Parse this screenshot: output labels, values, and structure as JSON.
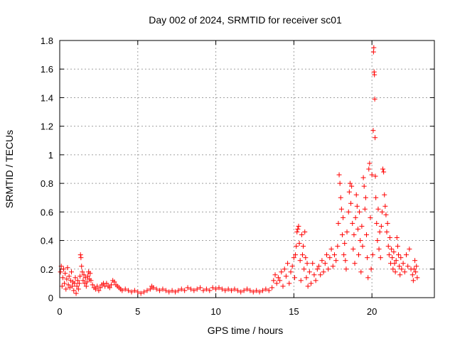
{
  "chart_data": {
    "type": "scatter",
    "title": "Day 002 of 2024, SRMTID for receiver sc01",
    "xlabel": "GPS time / hours",
    "ylabel": "SRMTID / TECUs",
    "xlim": [
      0,
      24
    ],
    "ylim": [
      0,
      1.8
    ],
    "xticks": [
      0,
      5,
      10,
      15,
      20
    ],
    "xtick_labels": [
      "0",
      "5",
      "10",
      "15",
      "20"
    ],
    "yticks": [
      0,
      0.2,
      0.4,
      0.6,
      0.8,
      1,
      1.2,
      1.4,
      1.6,
      1.8
    ],
    "ytick_labels": [
      "0",
      "0.2",
      "0.4",
      "0.6",
      "0.8",
      "1",
      "1.2",
      "1.4",
      "1.6",
      "1.8"
    ],
    "grid": true,
    "marker": "+",
    "color": "#ff0000",
    "series": [
      {
        "name": "SRMTID",
        "points": [
          [
            0.05,
            0.18
          ],
          [
            0.1,
            0.22
          ],
          [
            0.15,
            0.08
          ],
          [
            0.2,
            0.14
          ],
          [
            0.25,
            0.2
          ],
          [
            0.3,
            0.1
          ],
          [
            0.35,
            0.17
          ],
          [
            0.4,
            0.06
          ],
          [
            0.45,
            0.13
          ],
          [
            0.5,
            0.21
          ],
          [
            0.55,
            0.09
          ],
          [
            0.6,
            0.15
          ],
          [
            0.65,
            0.07
          ],
          [
            0.7,
            0.12
          ],
          [
            0.75,
            0.18
          ],
          [
            0.8,
            0.08
          ],
          [
            0.85,
            0.11
          ],
          [
            0.9,
            0.05
          ],
          [
            0.95,
            0.1
          ],
          [
            1.0,
            0.14
          ],
          [
            1.05,
            0.03
          ],
          [
            1.1,
            0.08
          ],
          [
            1.15,
            0.12
          ],
          [
            1.2,
            0.06
          ],
          [
            1.25,
            0.1
          ],
          [
            1.3,
            0.15
          ],
          [
            1.33,
            0.3
          ],
          [
            1.36,
            0.28
          ],
          [
            1.4,
            0.22
          ],
          [
            1.45,
            0.18
          ],
          [
            1.5,
            0.12
          ],
          [
            1.55,
            0.16
          ],
          [
            1.6,
            0.1
          ],
          [
            1.65,
            0.14
          ],
          [
            1.7,
            0.08
          ],
          [
            1.75,
            0.11
          ],
          [
            1.8,
            0.15
          ],
          [
            1.85,
            0.18
          ],
          [
            1.9,
            0.13
          ],
          [
            1.95,
            0.17
          ],
          [
            2.0,
            0.12
          ],
          [
            2.1,
            0.09
          ],
          [
            2.2,
            0.07
          ],
          [
            2.3,
            0.06
          ],
          [
            2.4,
            0.08
          ],
          [
            2.5,
            0.05
          ],
          [
            2.6,
            0.07
          ],
          [
            2.7,
            0.09
          ],
          [
            2.8,
            0.1
          ],
          [
            2.9,
            0.08
          ],
          [
            3.0,
            0.1
          ],
          [
            3.1,
            0.08
          ],
          [
            3.2,
            0.07
          ],
          [
            3.3,
            0.09
          ],
          [
            3.4,
            0.12
          ],
          [
            3.5,
            0.11
          ],
          [
            3.6,
            0.09
          ],
          [
            3.7,
            0.08
          ],
          [
            3.8,
            0.07
          ],
          [
            3.9,
            0.06
          ],
          [
            4.0,
            0.05
          ],
          [
            4.2,
            0.06
          ],
          [
            4.4,
            0.05
          ],
          [
            4.6,
            0.04
          ],
          [
            4.8,
            0.05
          ],
          [
            5.0,
            0.04
          ],
          [
            5.2,
            0.03
          ],
          [
            5.4,
            0.04
          ],
          [
            5.6,
            0.05
          ],
          [
            5.8,
            0.06
          ],
          [
            5.9,
            0.08
          ],
          [
            6.0,
            0.07
          ],
          [
            6.2,
            0.06
          ],
          [
            6.4,
            0.05
          ],
          [
            6.6,
            0.06
          ],
          [
            6.8,
            0.05
          ],
          [
            7.0,
            0.04
          ],
          [
            7.2,
            0.05
          ],
          [
            7.4,
            0.04
          ],
          [
            7.6,
            0.05
          ],
          [
            7.8,
            0.06
          ],
          [
            8.0,
            0.05
          ],
          [
            8.2,
            0.07
          ],
          [
            8.4,
            0.06
          ],
          [
            8.6,
            0.05
          ],
          [
            8.8,
            0.06
          ],
          [
            9.0,
            0.07
          ],
          [
            9.2,
            0.05
          ],
          [
            9.4,
            0.06
          ],
          [
            9.6,
            0.05
          ],
          [
            9.8,
            0.07
          ],
          [
            10.0,
            0.06
          ],
          [
            10.2,
            0.07
          ],
          [
            10.4,
            0.06
          ],
          [
            10.6,
            0.05
          ],
          [
            10.8,
            0.06
          ],
          [
            11.0,
            0.05
          ],
          [
            11.2,
            0.06
          ],
          [
            11.4,
            0.05
          ],
          [
            11.6,
            0.04
          ],
          [
            11.8,
            0.05
          ],
          [
            12.0,
            0.06
          ],
          [
            12.2,
            0.05
          ],
          [
            12.4,
            0.04
          ],
          [
            12.6,
            0.05
          ],
          [
            12.8,
            0.04
          ],
          [
            13.0,
            0.05
          ],
          [
            13.2,
            0.06
          ],
          [
            13.4,
            0.05
          ],
          [
            13.6,
            0.07
          ],
          [
            13.7,
            0.12
          ],
          [
            13.8,
            0.16
          ],
          [
            13.9,
            0.1
          ],
          [
            14.0,
            0.14
          ],
          [
            14.1,
            0.12
          ],
          [
            14.2,
            0.18
          ],
          [
            14.3,
            0.08
          ],
          [
            14.4,
            0.2
          ],
          [
            14.5,
            0.15
          ],
          [
            14.6,
            0.24
          ],
          [
            14.7,
            0.1
          ],
          [
            14.8,
            0.18
          ],
          [
            14.9,
            0.22
          ],
          [
            15.0,
            0.28
          ],
          [
            15.05,
            0.14
          ],
          [
            15.1,
            0.3
          ],
          [
            15.15,
            0.36
          ],
          [
            15.2,
            0.46
          ],
          [
            15.25,
            0.48
          ],
          [
            15.3,
            0.5
          ],
          [
            15.35,
            0.38
          ],
          [
            15.4,
            0.26
          ],
          [
            15.45,
            0.12
          ],
          [
            15.5,
            0.44
          ],
          [
            15.55,
            0.3
          ],
          [
            15.6,
            0.36
          ],
          [
            15.65,
            0.2
          ],
          [
            15.7,
            0.46
          ],
          [
            15.75,
            0.28
          ],
          [
            15.8,
            0.14
          ],
          [
            15.85,
            0.24
          ],
          [
            15.9,
            0.08
          ],
          [
            16.0,
            0.18
          ],
          [
            16.1,
            0.1
          ],
          [
            16.2,
            0.24
          ],
          [
            16.3,
            0.16
          ],
          [
            16.4,
            0.12
          ],
          [
            16.5,
            0.2
          ],
          [
            16.6,
            0.22
          ],
          [
            16.7,
            0.16
          ],
          [
            16.8,
            0.26
          ],
          [
            16.9,
            0.18
          ],
          [
            17.0,
            0.24
          ],
          [
            17.1,
            0.3
          ],
          [
            17.2,
            0.2
          ],
          [
            17.3,
            0.28
          ],
          [
            17.4,
            0.34
          ],
          [
            17.5,
            0.22
          ],
          [
            17.6,
            0.3
          ],
          [
            17.7,
            0.26
          ],
          [
            17.8,
            0.36
          ],
          [
            17.85,
            0.52
          ],
          [
            17.9,
            0.86
          ],
          [
            17.95,
            0.8
          ],
          [
            18.0,
            0.7
          ],
          [
            18.05,
            0.62
          ],
          [
            18.1,
            0.44
          ],
          [
            18.15,
            0.56
          ],
          [
            18.2,
            0.3
          ],
          [
            18.25,
            0.38
          ],
          [
            18.3,
            0.26
          ],
          [
            18.35,
            0.2
          ],
          [
            18.4,
            0.46
          ],
          [
            18.5,
            0.6
          ],
          [
            18.55,
            0.74
          ],
          [
            18.6,
            0.8
          ],
          [
            18.65,
            0.66
          ],
          [
            18.7,
            0.78
          ],
          [
            18.75,
            0.52
          ],
          [
            18.8,
            0.34
          ],
          [
            18.85,
            0.44
          ],
          [
            18.9,
            0.24
          ],
          [
            18.95,
            0.56
          ],
          [
            19.0,
            0.72
          ],
          [
            19.05,
            0.64
          ],
          [
            19.1,
            0.48
          ],
          [
            19.15,
            0.3
          ],
          [
            19.2,
            0.6
          ],
          [
            19.25,
            0.4
          ],
          [
            19.3,
            0.18
          ],
          [
            19.35,
            0.5
          ],
          [
            19.4,
            0.36
          ],
          [
            19.45,
            0.84
          ],
          [
            19.5,
            0.78
          ],
          [
            19.55,
            0.62
          ],
          [
            19.6,
            0.7
          ],
          [
            19.65,
            0.44
          ],
          [
            19.7,
            0.28
          ],
          [
            19.75,
            0.14
          ],
          [
            19.8,
            0.9
          ],
          [
            19.85,
            0.94
          ],
          [
            19.9,
            0.56
          ],
          [
            19.95,
            0.2
          ],
          [
            20.0,
            0.86
          ],
          [
            20.05,
            0.3
          ],
          [
            20.08,
            1.17
          ],
          [
            20.1,
            1.72
          ],
          [
            20.12,
            1.75
          ],
          [
            20.14,
            1.58
          ],
          [
            20.16,
            1.56
          ],
          [
            20.18,
            1.39
          ],
          [
            20.2,
            1.12
          ],
          [
            20.22,
            0.85
          ],
          [
            20.25,
            0.7
          ],
          [
            20.3,
            0.52
          ],
          [
            20.35,
            0.4
          ],
          [
            20.4,
            0.62
          ],
          [
            20.45,
            0.34
          ],
          [
            20.5,
            0.46
          ],
          [
            20.55,
            0.28
          ],
          [
            20.6,
            0.5
          ],
          [
            20.65,
            0.6
          ],
          [
            20.7,
            0.9
          ],
          [
            20.75,
            0.88
          ],
          [
            20.8,
            0.72
          ],
          [
            20.85,
            0.64
          ],
          [
            20.9,
            0.58
          ],
          [
            20.95,
            0.46
          ],
          [
            21.0,
            0.52
          ],
          [
            21.05,
            0.36
          ],
          [
            21.1,
            0.3
          ],
          [
            21.15,
            0.42
          ],
          [
            21.2,
            0.24
          ],
          [
            21.25,
            0.34
          ],
          [
            21.3,
            0.28
          ],
          [
            21.35,
            0.2
          ],
          [
            21.4,
            0.32
          ],
          [
            21.45,
            0.24
          ],
          [
            21.5,
            0.18
          ],
          [
            21.55,
            0.26
          ],
          [
            21.6,
            0.42
          ],
          [
            21.65,
            0.36
          ],
          [
            21.7,
            0.3
          ],
          [
            21.75,
            0.22
          ],
          [
            21.8,
            0.16
          ],
          [
            21.85,
            0.28
          ],
          [
            21.9,
            0.2
          ],
          [
            22.0,
            0.24
          ],
          [
            22.1,
            0.18
          ],
          [
            22.2,
            0.3
          ],
          [
            22.3,
            0.22
          ],
          [
            22.4,
            0.34
          ],
          [
            22.5,
            0.2
          ],
          [
            22.6,
            0.16
          ],
          [
            22.65,
            0.12
          ],
          [
            22.7,
            0.2
          ],
          [
            22.75,
            0.26
          ],
          [
            22.8,
            0.18
          ],
          [
            22.85,
            0.22
          ],
          [
            22.9,
            0.14
          ]
        ]
      }
    ]
  }
}
